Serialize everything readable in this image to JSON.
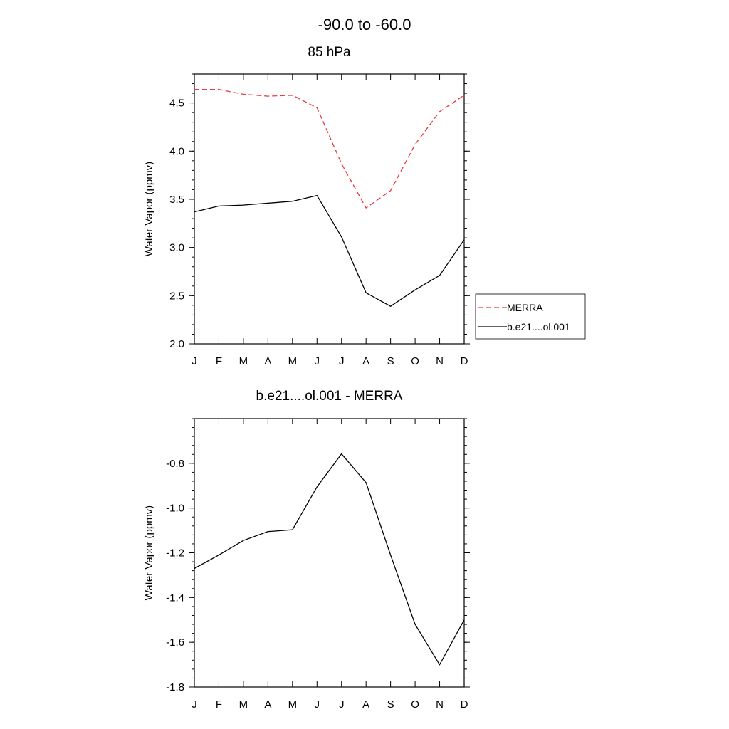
{
  "figure": {
    "title": "-90.0 to -60.0"
  },
  "chart_data": [
    {
      "type": "line",
      "title": "85 hPa",
      "xlabel": "",
      "ylabel": "Water Vapor (ppmv)",
      "categories": [
        "J",
        "F",
        "M",
        "A",
        "M",
        "J",
        "J",
        "A",
        "S",
        "O",
        "N",
        "D"
      ],
      "ylim": [
        2.0,
        4.8
      ],
      "yticks": [
        "2.0",
        "2.5",
        "3.0",
        "3.5",
        "4.0",
        "4.5"
      ],
      "grid": false,
      "legend": "right",
      "series": [
        {
          "name": "MERRA",
          "color": "#e8383d",
          "dash": "dashed",
          "values": [
            4.64,
            4.64,
            4.59,
            4.57,
            4.58,
            4.45,
            3.87,
            3.41,
            3.59,
            4.07,
            4.41,
            4.58
          ]
        },
        {
          "name": "b.e21....ol.001",
          "color": "#000000",
          "dash": "solid",
          "values": [
            3.37,
            3.43,
            3.44,
            3.46,
            3.48,
            3.54,
            3.11,
            2.53,
            2.39,
            2.56,
            2.71,
            3.08
          ]
        }
      ]
    },
    {
      "type": "line",
      "title": "b.e21....ol.001 - MERRA",
      "xlabel": "",
      "ylabel": "Water Vapor (ppmv)",
      "categories": [
        "J",
        "F",
        "M",
        "A",
        "M",
        "J",
        "J",
        "A",
        "S",
        "O",
        "N",
        "D"
      ],
      "ylim": [
        -1.8,
        -0.6
      ],
      "yticks": [
        "-1.8",
        "-1.6",
        "-1.4",
        "-1.2",
        "-1.0",
        "-0.8"
      ],
      "grid": false,
      "series": [
        {
          "color": "#000000",
          "dash": "solid",
          "values": [
            -1.27,
            -1.21,
            -1.145,
            -1.105,
            -1.097,
            -0.905,
            -0.758,
            -0.886,
            -1.21,
            -1.52,
            -1.7,
            -1.5
          ]
        }
      ]
    }
  ]
}
